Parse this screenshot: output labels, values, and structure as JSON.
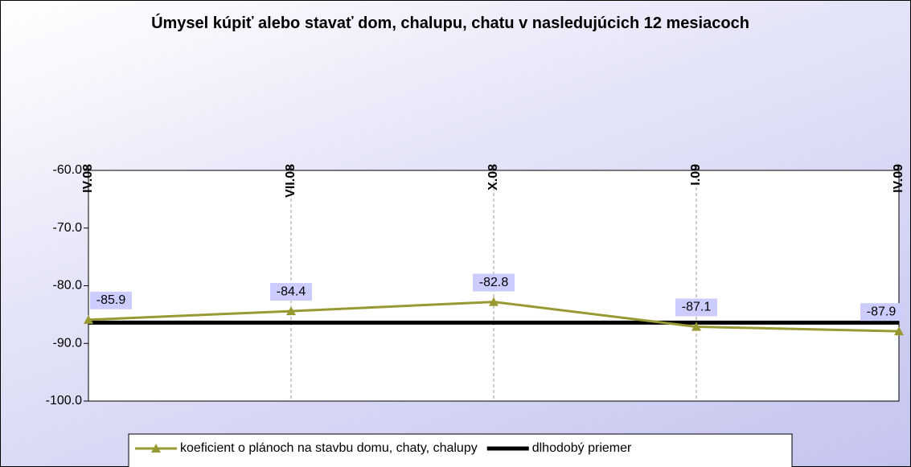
{
  "chart_data": {
    "type": "line",
    "title": "Úmysel kúpiť alebo stavať dom, chalupu, chatu v nasledujúcich 12 mesiacoch",
    "categories": [
      "IV.08",
      "VII.08",
      "X.08",
      "I.09",
      "IV.09"
    ],
    "series": [
      {
        "name": "koeficient o plánoch na stavbu domu, chaty, chalupy",
        "color": "#999933",
        "values": [
          -85.9,
          -84.4,
          -82.8,
          -87.1,
          -87.9
        ]
      },
      {
        "name": "dlhodobý priemer",
        "color": "#000000",
        "values": [
          -86.4,
          -86.4,
          -86.4,
          -86.4,
          -86.4
        ]
      }
    ],
    "ylim": [
      -100,
      -60
    ],
    "yticks": [
      {
        "value": -60,
        "label": "-60.0"
      },
      {
        "value": -70,
        "label": "-70.0"
      },
      {
        "value": -80,
        "label": "-80.0"
      },
      {
        "value": -90,
        "label": "-90.0"
      },
      {
        "value": -100,
        "label": "-100.0"
      }
    ],
    "grid": true
  }
}
